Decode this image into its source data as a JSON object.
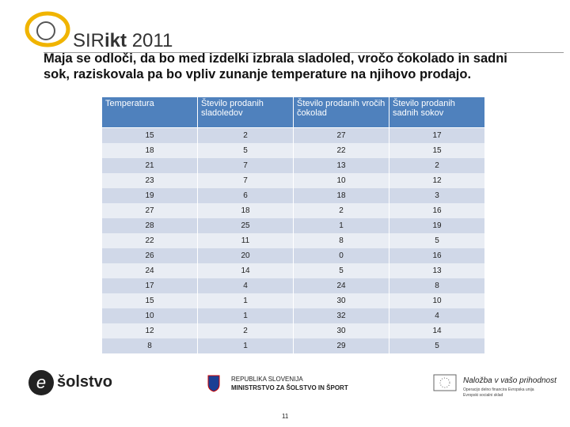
{
  "header": {
    "brand_a": "SIR",
    "brand_b": "ikt",
    "brand_year": "2011"
  },
  "intro": "Maja se odloči, da bo med izdelki izbrala sladoled, vročo čokolado in sadni sok, raziskovala pa bo vpliv zunanje temperature na njihovo prodajo.",
  "table": {
    "columns": [
      "Temperatura",
      "Število prodanih sladoledov",
      "Število prodanih vročih čokolad",
      "Število prodanih sadnih sokov"
    ],
    "rows": [
      [
        15,
        2,
        27,
        17
      ],
      [
        18,
        5,
        22,
        15
      ],
      [
        21,
        7,
        13,
        2
      ],
      [
        23,
        7,
        10,
        12
      ],
      [
        19,
        6,
        18,
        3
      ],
      [
        27,
        18,
        2,
        16
      ],
      [
        28,
        25,
        1,
        19
      ],
      [
        22,
        11,
        8,
        5
      ],
      [
        26,
        20,
        0,
        16
      ],
      [
        24,
        14,
        5,
        13
      ],
      [
        17,
        4,
        24,
        8
      ],
      [
        15,
        1,
        30,
        10
      ],
      [
        10,
        1,
        32,
        4
      ],
      [
        12,
        2,
        30,
        14
      ],
      [
        8,
        1,
        29,
        5
      ]
    ]
  },
  "footer": {
    "solstvo": "šolstvo",
    "republic": "REPUBLIKA SLOVENIJA",
    "ministry": "MINISTRSTVO ZA ŠOLSTVO IN ŠPORT",
    "eu_slogan": "Naložba v vašo prihodnost",
    "eu_note_1": "Operacijo delno financira Evropska unija",
    "eu_note_2": "Evropski socialni sklad",
    "page": "11"
  }
}
